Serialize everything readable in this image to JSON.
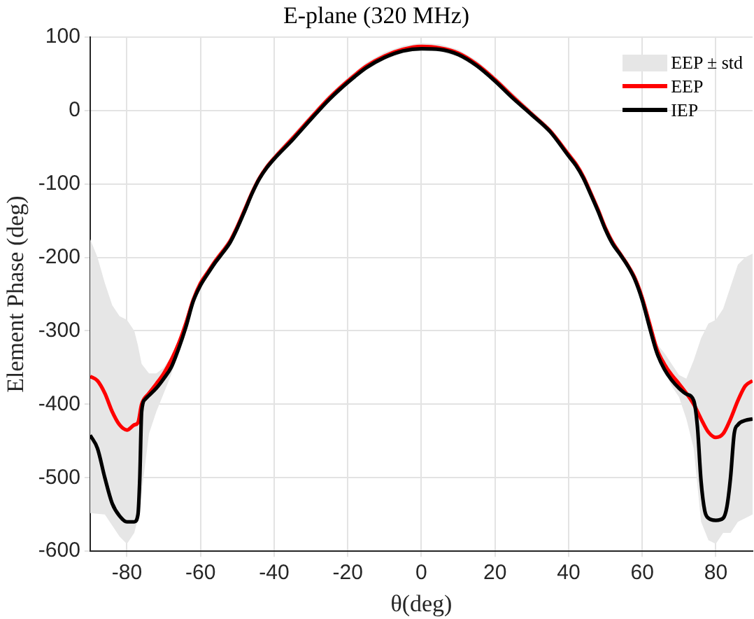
{
  "chart_data": {
    "type": "line",
    "title": "E-plane (320 MHz)",
    "xlabel": "θ(deg)",
    "ylabel": "Element Phase (deg)",
    "xlim": [
      -90,
      90
    ],
    "xticks": [
      -80,
      -60,
      -40,
      -20,
      0,
      20,
      40,
      60,
      80
    ],
    "ylim": [
      -600,
      100
    ],
    "yticks": [
      -600,
      -500,
      -400,
      -300,
      -200,
      -100,
      0,
      100
    ],
    "grid": true,
    "annotations": [
      "EEP ± std"
    ],
    "legend": "top right",
    "marker": "none",
    "line_style": "solid",
    "series": [
      {
        "name": "EEP",
        "color": "#ff0000",
        "x": [
          -90,
          -88,
          -86,
          -84,
          -82,
          -80,
          -78,
          -77,
          -76,
          -74,
          -72,
          -70,
          -68,
          -66,
          -64,
          -62,
          -60,
          -58,
          -56,
          -54,
          -52,
          -50,
          -48,
          -46,
          -44,
          -42,
          -40,
          -35,
          -30,
          -25,
          -20,
          -15,
          -10,
          -5,
          0,
          5,
          10,
          15,
          20,
          25,
          30,
          35,
          40,
          42,
          44,
          46,
          48,
          50,
          52,
          54,
          56,
          58,
          60,
          62,
          64,
          66,
          68,
          70,
          72,
          74,
          76,
          78,
          80,
          82,
          84,
          86,
          88,
          90
        ],
        "upper": [
          -175,
          -200,
          -235,
          -265,
          -280,
          -285,
          -300,
          -320,
          -345,
          -358,
          -358,
          -350,
          -335,
          -312,
          -285,
          -253,
          -230,
          -215,
          -200,
          -187,
          -173,
          -153,
          -130,
          -107,
          -87,
          -72,
          -60,
          -33,
          -5,
          22,
          45,
          65,
          79,
          88,
          92,
          90,
          83,
          68,
          47,
          23,
          0,
          -23,
          -55,
          -68,
          -85,
          -107,
          -130,
          -155,
          -175,
          -190,
          -205,
          -223,
          -250,
          -285,
          -318,
          -330,
          -345,
          -360,
          -365,
          -340,
          -310,
          -290,
          -285,
          -270,
          -240,
          -210,
          -200,
          -195
        ],
        "lower": [
          -548,
          -549,
          -550,
          -565,
          -580,
          -590,
          -575,
          -555,
          -520,
          -440,
          -410,
          -385,
          -360,
          -330,
          -298,
          -263,
          -240,
          -225,
          -210,
          -197,
          -183,
          -163,
          -140,
          -117,
          -97,
          -82,
          -70,
          -43,
          -15,
          12,
          35,
          55,
          69,
          78,
          82,
          80,
          73,
          58,
          37,
          13,
          -10,
          -33,
          -65,
          -78,
          -95,
          -117,
          -140,
          -165,
          -185,
          -200,
          -215,
          -233,
          -260,
          -295,
          -335,
          -355,
          -375,
          -390,
          -420,
          -460,
          -560,
          -585,
          -590,
          -575,
          -575,
          -560,
          -555,
          -550
        ],
        "values": [
          -362,
          -368,
          -385,
          -410,
          -428,
          -435,
          -428,
          -425,
          -400,
          -385,
          -372,
          -358,
          -340,
          -318,
          -290,
          -258,
          -235,
          -220,
          -205,
          -192,
          -178,
          -158,
          -135,
          -112,
          -92,
          -77,
          -65,
          -38,
          -10,
          17,
          40,
          60,
          74,
          83,
          87,
          85,
          78,
          63,
          42,
          18,
          -5,
          -28,
          -60,
          -73,
          -90,
          -112,
          -135,
          -160,
          -180,
          -195,
          -210,
          -228,
          -255,
          -290,
          -325,
          -345,
          -360,
          -372,
          -385,
          -400,
          -420,
          -438,
          -445,
          -440,
          -420,
          -395,
          -375,
          -368
        ]
      },
      {
        "name": "IEP",
        "color": "#000000",
        "x": [
          -90,
          -88,
          -86,
          -84,
          -82,
          -80,
          -78,
          -77,
          -76.5,
          -76,
          -75,
          -74,
          -72,
          -70,
          -68,
          -66,
          -64,
          -62,
          -60,
          -58,
          -56,
          -54,
          -52,
          -50,
          -48,
          -46,
          -44,
          -42,
          -40,
          -35,
          -30,
          -25,
          -20,
          -15,
          -10,
          -5,
          0,
          5,
          10,
          15,
          20,
          25,
          30,
          35,
          40,
          42,
          44,
          46,
          48,
          50,
          52,
          54,
          56,
          58,
          60,
          62,
          64,
          66,
          68,
          70,
          72,
          74,
          75,
          76,
          77,
          78,
          80,
          82,
          83,
          84,
          85,
          86,
          88,
          90
        ],
        "values": [
          -442,
          -460,
          -500,
          -535,
          -552,
          -560,
          -560,
          -550,
          -500,
          -410,
          -393,
          -388,
          -378,
          -365,
          -350,
          -325,
          -295,
          -260,
          -238,
          -222,
          -207,
          -194,
          -180,
          -160,
          -137,
          -113,
          -93,
          -78,
          -66,
          -40,
          -12,
          15,
          38,
          58,
          72,
          81,
          84,
          83,
          76,
          61,
          40,
          16,
          -6,
          -29,
          -62,
          -75,
          -92,
          -114,
          -137,
          -162,
          -182,
          -196,
          -211,
          -230,
          -258,
          -295,
          -330,
          -352,
          -367,
          -378,
          -386,
          -395,
          -430,
          -505,
          -545,
          -555,
          -558,
          -555,
          -540,
          -500,
          -440,
          -428,
          -422,
          -420
        ]
      }
    ]
  }
}
